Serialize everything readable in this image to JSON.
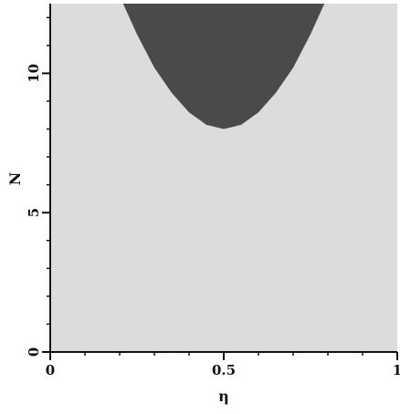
{
  "chart_data": {
    "type": "area",
    "title": "",
    "xlabel": "η",
    "ylabel": "N",
    "xlim": [
      0,
      1
    ],
    "ylim": [
      0,
      12.5
    ],
    "x_ticks": [
      {
        "value": 0,
        "label": "0"
      },
      {
        "value": 0.5,
        "label": "0.5"
      },
      {
        "value": 1,
        "label": "1"
      }
    ],
    "y_ticks": [
      {
        "value": 0,
        "label": "0"
      },
      {
        "value": 5,
        "label": "5"
      },
      {
        "value": 10,
        "label": "10"
      }
    ],
    "x_minor_tick_step": 0.1,
    "y_minor_tick_step": 1,
    "grid": false,
    "background_region_color": "#dcdcdc",
    "series": [
      {
        "fill_color": "#4a4a4a",
        "boundary": {
          "x": [
            0.21,
            0.25,
            0.3,
            0.35,
            0.4,
            0.45,
            0.5,
            0.55,
            0.6,
            0.65,
            0.7,
            0.75,
            0.79
          ],
          "y": [
            12.5,
            11.4,
            10.2,
            9.3,
            8.6,
            8.15,
            8.0,
            8.15,
            8.6,
            9.3,
            10.2,
            11.4,
            12.5
          ]
        }
      }
    ]
  }
}
